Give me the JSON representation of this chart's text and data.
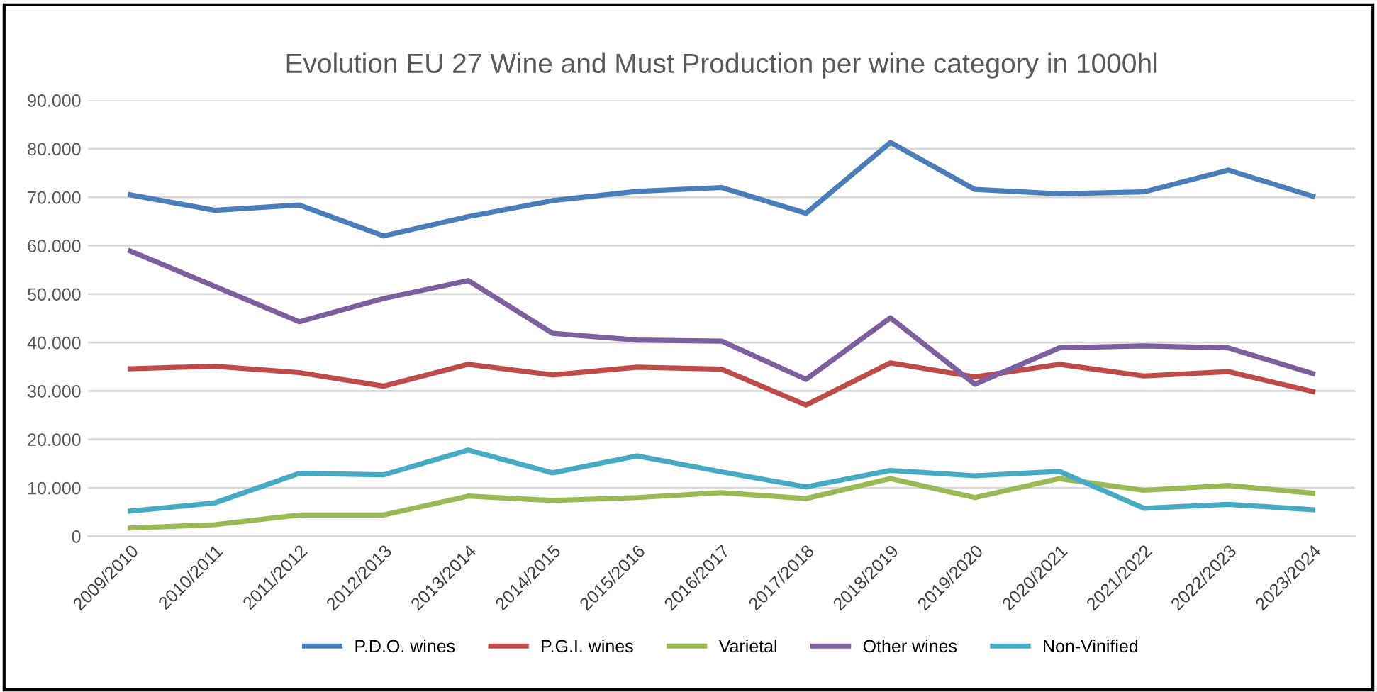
{
  "chart_data": {
    "type": "line",
    "title": "Evolution EU 27 Wine and Must Production per wine category in 1000hl",
    "categories": [
      "2009/2010",
      "2010/2011",
      "2011/2012",
      "2012/2013",
      "2013/2014",
      "2014/2015",
      "2015/2016",
      "2016/2017",
      "2017/2018",
      "2018/2019",
      "2019/2020",
      "2020/2021",
      "2021/2022",
      "2022/2023",
      "2023/2024"
    ],
    "series": [
      {
        "name": "P.D.O. wines",
        "color": "#4a7ebb",
        "values": [
          70500,
          67300,
          68400,
          62000,
          66000,
          69300,
          71200,
          72000,
          66700,
          81300,
          71600,
          70700,
          71100,
          75600,
          70200
        ]
      },
      {
        "name": "P.G.I. wines",
        "color": "#be4b48",
        "values": [
          34600,
          35100,
          33800,
          31000,
          35500,
          33300,
          34900,
          34500,
          27100,
          35800,
          32900,
          35500,
          33100,
          34000,
          29900
        ]
      },
      {
        "name": "Varietal",
        "color": "#98b954",
        "values": [
          1700,
          2400,
          4400,
          4400,
          8300,
          7400,
          8000,
          9000,
          7800,
          11900,
          8000,
          11900,
          9500,
          10500,
          8900
        ]
      },
      {
        "name": "Other wines",
        "color": "#7d5fa0",
        "values": [
          58900,
          51600,
          44300,
          49100,
          52800,
          41900,
          40500,
          40300,
          32400,
          45100,
          31400,
          38900,
          39300,
          38900,
          33600
        ]
      },
      {
        "name": "Non-Vinified",
        "color": "#46aac5",
        "values": [
          5200,
          6900,
          13000,
          12700,
          17800,
          13100,
          16600,
          13300,
          10200,
          13600,
          12500,
          13400,
          5800,
          6600,
          5500
        ]
      }
    ],
    "ylim": [
      0,
      90000
    ],
    "yticks": [
      {
        "value": 0,
        "label": "0"
      },
      {
        "value": 10000,
        "label": "10.000"
      },
      {
        "value": 20000,
        "label": "20.000"
      },
      {
        "value": 30000,
        "label": "30.000"
      },
      {
        "value": 40000,
        "label": "40.000"
      },
      {
        "value": 50000,
        "label": "50.000"
      },
      {
        "value": 60000,
        "label": "60.000"
      },
      {
        "value": 70000,
        "label": "70.000"
      },
      {
        "value": 80000,
        "label": "80.000"
      },
      {
        "value": 90000,
        "label": "90.000"
      }
    ],
    "grid": "y",
    "legend": "bottom",
    "marker": "none",
    "line_style": "solid"
  }
}
